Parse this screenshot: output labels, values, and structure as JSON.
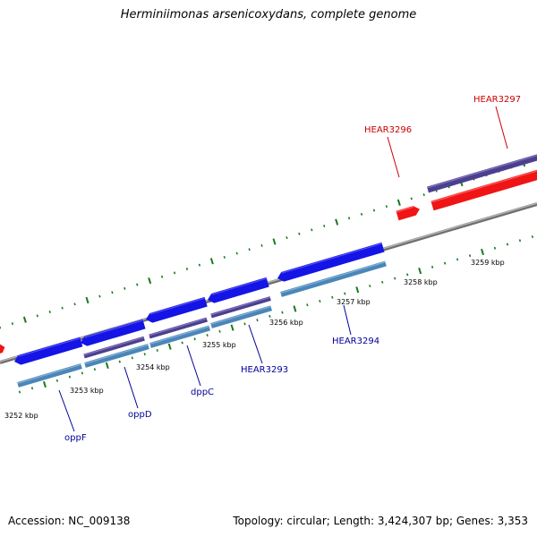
{
  "title": "Herminiimonas arsenicoxydans, complete genome",
  "accession": "Accession: NC_009138",
  "stats": "Topology: circular; Length: 3,424,307 bp; Genes: 3,353",
  "colors": {
    "backbone": "#8c8c8c",
    "tick": "#1a7a1a",
    "cds": "#1414e6",
    "blast_purple": "#4b3f8f",
    "blast_steel": "#4a86b8",
    "rna_red": "#f01414",
    "label_blue": "#000099",
    "label_red": "#cc0000"
  },
  "kbp_labels": [
    "3252 kbp",
    "3253 kbp",
    "3254 kbp",
    "3255 kbp",
    "3256 kbp",
    "3257 kbp",
    "3258 kbp",
    "3259 kbp"
  ],
  "gene_labels": [
    {
      "name": "oppF",
      "color": "#000099"
    },
    {
      "name": "oppD",
      "color": "#000099"
    },
    {
      "name": "dppC",
      "color": "#000099"
    },
    {
      "name": "HEAR3293",
      "color": "#000099"
    },
    {
      "name": "HEAR3294",
      "color": "#000099"
    },
    {
      "name": "HEAR3296",
      "color": "#cc0000"
    },
    {
      "name": "HEAR3297",
      "color": "#cc0000"
    }
  ]
}
